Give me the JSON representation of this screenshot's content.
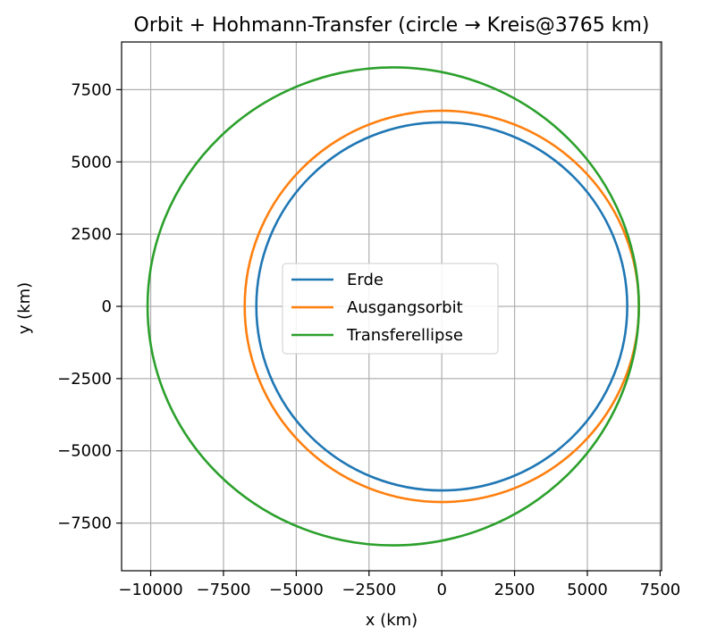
{
  "chart_data": {
    "type": "line",
    "title": "Orbit + Hohmann-Transfer (circle → Kreis@3765 km)",
    "xlabel": "x (km)",
    "ylabel": "y (km)",
    "xlim": [
      -11000,
      7550
    ],
    "ylim": [
      -9150,
      9150
    ],
    "xticks": [
      -10000,
      -7500,
      -5000,
      -2500,
      0,
      2500,
      5000,
      7500
    ],
    "xtick_labels": [
      "−10000",
      "−7500",
      "−5000",
      "−2500",
      "0",
      "2500",
      "5000",
      "7500"
    ],
    "yticks": [
      -7500,
      -5000,
      -2500,
      0,
      2500,
      5000,
      7500
    ],
    "ytick_labels": [
      "−7500",
      "−5000",
      "−2500",
      "0",
      "2500",
      "5000",
      "7500"
    ],
    "grid": true,
    "legend_position": "center",
    "series": [
      {
        "name": "Erde",
        "shape": "circle",
        "center": [
          0,
          0
        ],
        "radius": 6371,
        "color": "#1f77b4"
      },
      {
        "name": "Ausgangsorbit",
        "shape": "circle",
        "center": [
          0,
          0
        ],
        "radius": 6771,
        "color": "#ff7f0e"
      },
      {
        "name": "Transferellipse",
        "shape": "ellipse",
        "center": [
          -1668,
          0
        ],
        "semi_major": 8439,
        "semi_minor": 8272,
        "color": "#2ca02c"
      }
    ]
  }
}
